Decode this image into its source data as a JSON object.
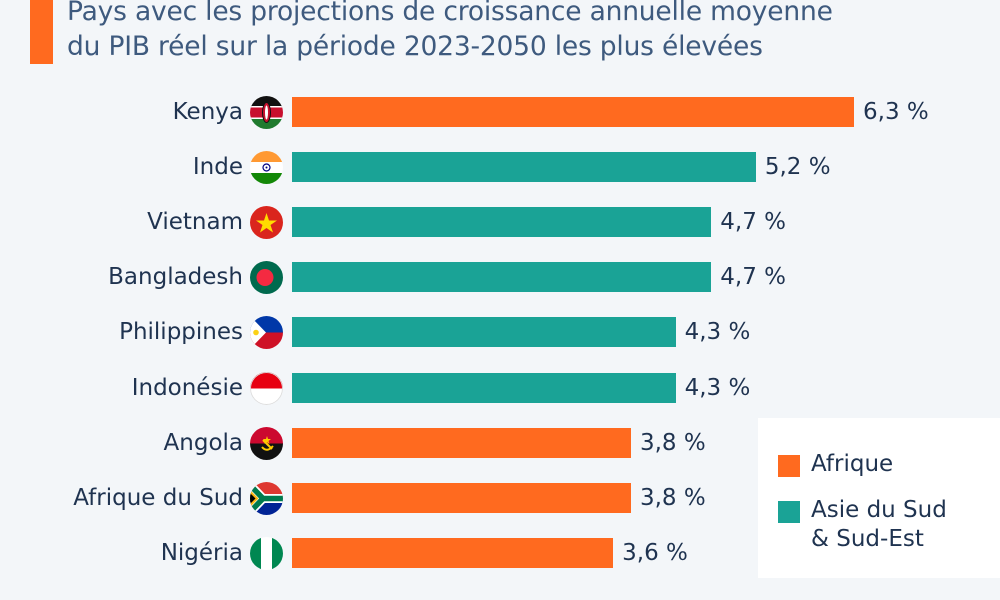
{
  "title": "Pays avec les projections de croissance annuelle moyenne du PIB réel sur la période 2023-2050 les plus élevées",
  "title_lines": [
    "Pays avec les projections de croissance annuelle moyenne",
    "du PIB réel sur la période 2023-2050 les plus élevées"
  ],
  "colors": {
    "afrique": "#ff6a1f",
    "asie": "#1aa396",
    "accent": "#ff6a1f",
    "text": "#1f3350",
    "title": "#3e5a7e",
    "background": "#f3f6f9"
  },
  "chart_data": {
    "type": "bar",
    "orientation": "horizontal",
    "title": "Pays avec les projections de croissance annuelle moyenne du PIB réel sur la période 2023-2050 les plus élevées",
    "xlabel": "",
    "ylabel": "",
    "unit": "%",
    "xlim": [
      0,
      6.3
    ],
    "grid": false,
    "legend_position": "bottom-right",
    "categories": [
      "Kenya",
      "Inde",
      "Vietnam",
      "Bangladesh",
      "Philippines",
      "Indonésie",
      "Angola",
      "Afrique du Sud",
      "Nigéria"
    ],
    "values": [
      6.3,
      5.2,
      4.7,
      4.7,
      4.3,
      4.3,
      3.8,
      3.8,
      3.6
    ],
    "value_labels": [
      "6,3 %",
      "5,2 %",
      "4,7 %",
      "4,7 %",
      "4,3 %",
      "4,3 %",
      "3,8 %",
      "3,8 %",
      "3,6 %"
    ],
    "regions": [
      "Afrique",
      "Asie du Sud & Sud-Est",
      "Asie du Sud & Sud-Est",
      "Asie du Sud & Sud-Est",
      "Asie du Sud & Sud-Est",
      "Asie du Sud & Sud-Est",
      "Afrique",
      "Afrique",
      "Afrique"
    ],
    "flags": [
      "kenya-flag",
      "india-flag",
      "vietnam-flag",
      "bangladesh-flag",
      "philippines-flag",
      "indonesia-flag",
      "angola-flag",
      "south-africa-flag",
      "nigeria-flag"
    ],
    "legend": [
      {
        "label": "Afrique",
        "color": "#ff6a1f"
      },
      {
        "label": "Asie du Sud & Sud-Est",
        "color": "#1aa396",
        "lines": [
          "Asie du Sud",
          "& Sud-Est"
        ]
      }
    ]
  }
}
